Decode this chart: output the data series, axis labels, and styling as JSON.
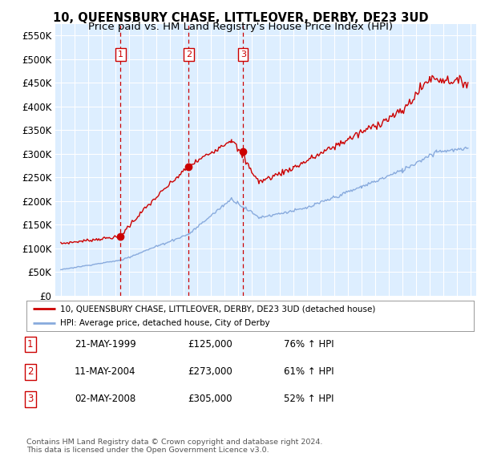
{
  "title": "10, QUEENSBURY CHASE, LITTLEOVER, DERBY, DE23 3UD",
  "subtitle": "Price paid vs. HM Land Registry's House Price Index (HPI)",
  "title_fontsize": 10.5,
  "subtitle_fontsize": 9.5,
  "ylim": [
    0,
    575000
  ],
  "yticks": [
    0,
    50000,
    100000,
    150000,
    200000,
    250000,
    300000,
    350000,
    400000,
    450000,
    500000,
    550000
  ],
  "ytick_labels": [
    "£0",
    "£50K",
    "£100K",
    "£150K",
    "£200K",
    "£250K",
    "£300K",
    "£350K",
    "£400K",
    "£450K",
    "£500K",
    "£550K"
  ],
  "xlim_start": 1994.6,
  "xlim_end": 2025.4,
  "sale1_year": 1999.38,
  "sale1_price": 125000,
  "sale1_label": "1",
  "sale1_date": "21-MAY-1999",
  "sale1_hpi_pct": "76%",
  "sale2_year": 2004.36,
  "sale2_price": 273000,
  "sale2_label": "2",
  "sale2_date": "11-MAY-2004",
  "sale2_hpi_pct": "61%",
  "sale3_year": 2008.34,
  "sale3_price": 305000,
  "sale3_label": "3",
  "sale3_date": "02-MAY-2008",
  "sale3_hpi_pct": "52%",
  "red_color": "#cc0000",
  "blue_color": "#88aadd",
  "bg_color": "#ddeeff",
  "grid_color": "#ffffff",
  "legend_label_red": "10, QUEENSBURY CHASE, LITTLEOVER, DERBY, DE23 3UD (detached house)",
  "legend_label_blue": "HPI: Average price, detached house, City of Derby",
  "footer1": "Contains HM Land Registry data © Crown copyright and database right 2024.",
  "footer2": "This data is licensed under the Open Government Licence v3.0."
}
